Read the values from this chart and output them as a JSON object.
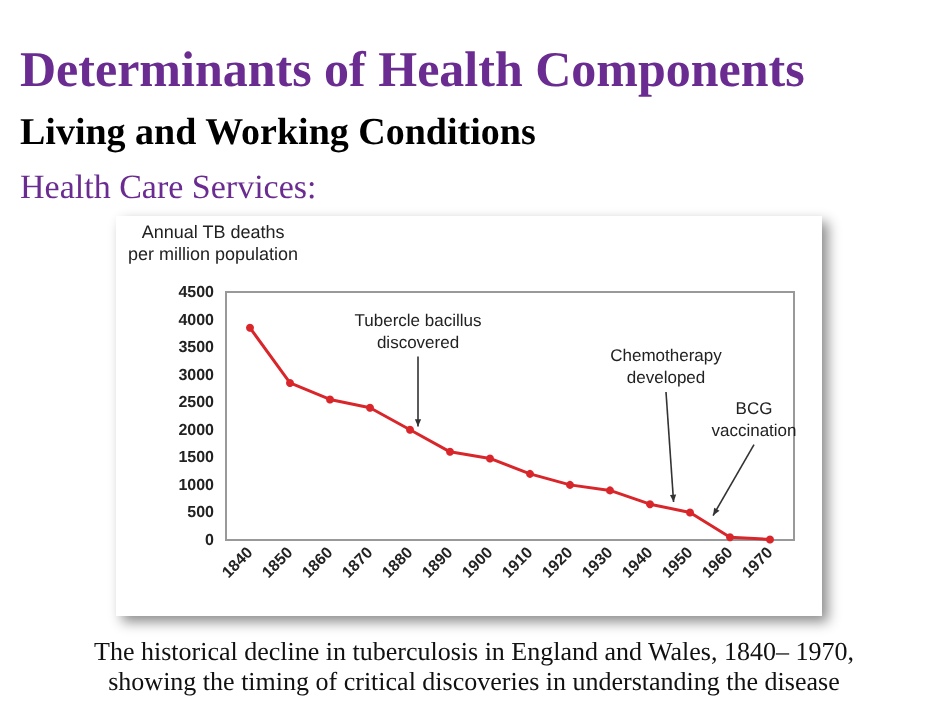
{
  "chart_data": {
    "type": "line",
    "title": "Determinants of Health Components",
    "subtitle": "Living and Working Conditions",
    "ylabel": "Annual TB deaths\nper million population",
    "x": [
      1840,
      1850,
      1860,
      1870,
      1880,
      1890,
      1900,
      1910,
      1920,
      1930,
      1940,
      1950,
      1960,
      1970
    ],
    "series": [
      {
        "color": "#d9262b",
        "values": [
          3850,
          2850,
          2550,
          2400,
          2000,
          1600,
          1480,
          1200,
          1000,
          900,
          650,
          500,
          50,
          10
        ]
      }
    ],
    "xlim": [
      1834,
      1976
    ],
    "xticks": [
      1840,
      1850,
      1860,
      1870,
      1880,
      1890,
      1900,
      1910,
      1920,
      1930,
      1940,
      1950,
      1960,
      1970
    ],
    "ylim": [
      0,
      4500
    ],
    "yticks": [
      0,
      500,
      1000,
      1500,
      2000,
      2500,
      3000,
      3500,
      4000,
      4500
    ],
    "grid": false,
    "marker": "circle",
    "line_style": "solid",
    "annotations": [
      "Health Care Services:",
      {
        "text": "Tubercle bacillus\ndiscovered",
        "x": 1882,
        "y": 1950
      },
      {
        "text": "Chemotherapy\ndeveloped",
        "x": 1946,
        "y": 580
      },
      {
        "text": "BCG\nvaccination",
        "x": 1955,
        "y": 350
      },
      "The historical decline in tuberculosis in England and Wales, 1840– 1970,\nshowing the timing of critical discoveries in understanding the disease"
    ]
  }
}
